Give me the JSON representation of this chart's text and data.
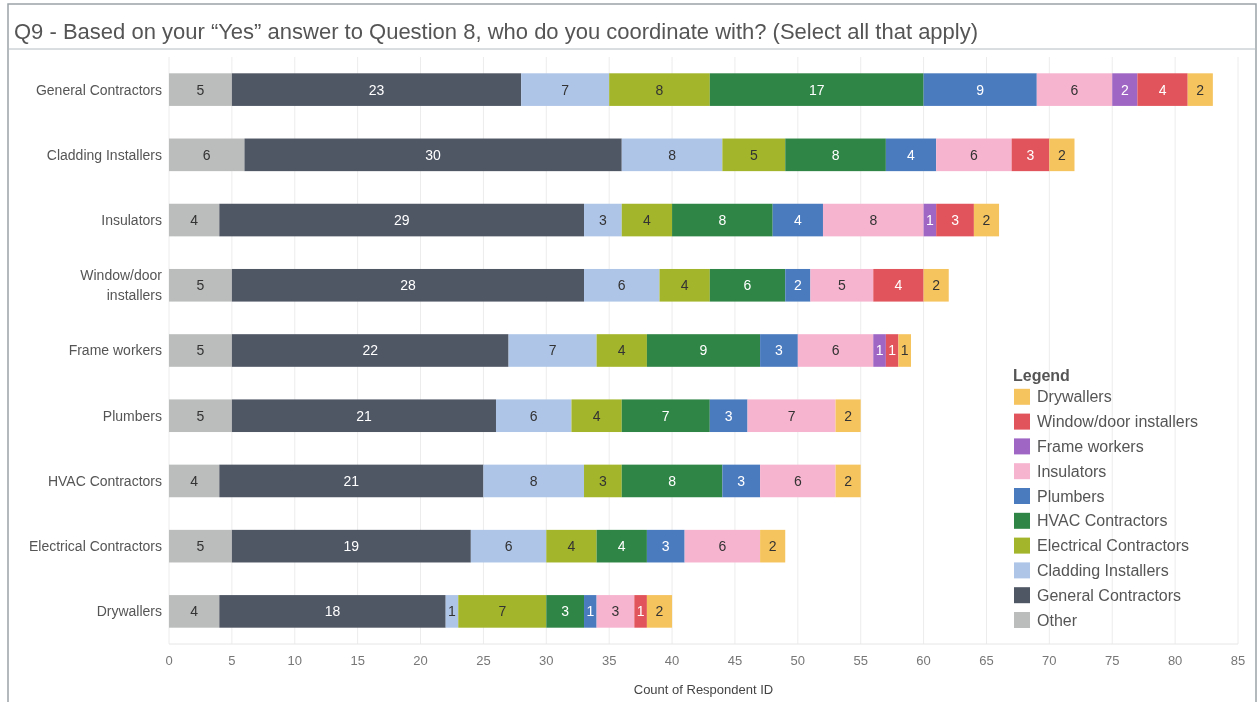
{
  "chart_data": {
    "type": "bar",
    "orientation": "horizontal",
    "stacked": true,
    "title": "Q9 - Based on your “Yes” answer to Question 8, who do you coordinate with? (Select all that apply)",
    "xlabel": "Count of Respondent ID",
    "legend_title": "Legend",
    "categories": [
      "General Contractors",
      "Cladding Installers",
      "Insulators",
      "Window/door installers",
      "Frame workers",
      "Plumbers",
      "HVAC Contractors",
      "Electrical Contractors",
      "Drywallers"
    ],
    "series": [
      {
        "name": "Other",
        "color": "#bbbcbc",
        "values": [
          5,
          6,
          4,
          5,
          5,
          5,
          4,
          5,
          4
        ]
      },
      {
        "name": "General Contractors",
        "color": "#4f5664",
        "values": [
          23,
          30,
          29,
          28,
          22,
          21,
          21,
          19,
          18
        ]
      },
      {
        "name": "Cladding Installers",
        "color": "#aec5e8",
        "values": [
          7,
          8,
          3,
          6,
          7,
          6,
          8,
          6,
          1
        ]
      },
      {
        "name": "Electrical Contractors",
        "color": "#a3b52a",
        "values": [
          8,
          5,
          4,
          4,
          4,
          4,
          3,
          4,
          7
        ]
      },
      {
        "name": "HVAC Contractors",
        "color": "#2f8545",
        "values": [
          17,
          8,
          8,
          6,
          9,
          7,
          8,
          4,
          3
        ]
      },
      {
        "name": "Plumbers",
        "color": "#4b7bbf",
        "values": [
          9,
          4,
          4,
          2,
          3,
          3,
          3,
          3,
          1
        ]
      },
      {
        "name": "Insulators",
        "color": "#f7b4cf",
        "values": [
          6,
          6,
          8,
          5,
          6,
          7,
          6,
          6,
          3
        ]
      },
      {
        "name": "Frame workers",
        "color": "#a066c4",
        "values": [
          2,
          null,
          1,
          null,
          1,
          null,
          null,
          null,
          null
        ]
      },
      {
        "name": "Window/door installers",
        "color": "#e2545b",
        "values": [
          4,
          3,
          3,
          4,
          1,
          null,
          null,
          null,
          1
        ]
      },
      {
        "name": "Drywallers",
        "color": "#f6c45f",
        "values": [
          2,
          2,
          2,
          2,
          1,
          2,
          2,
          2,
          2
        ]
      }
    ],
    "xlim": [
      0,
      85
    ],
    "xticks": [
      0,
      5,
      10,
      15,
      20,
      25,
      30,
      35,
      40,
      45,
      50,
      55,
      60,
      65,
      70,
      75,
      80,
      85
    ],
    "grid": "x",
    "legend": "bottom right",
    "data_labels": true
  }
}
